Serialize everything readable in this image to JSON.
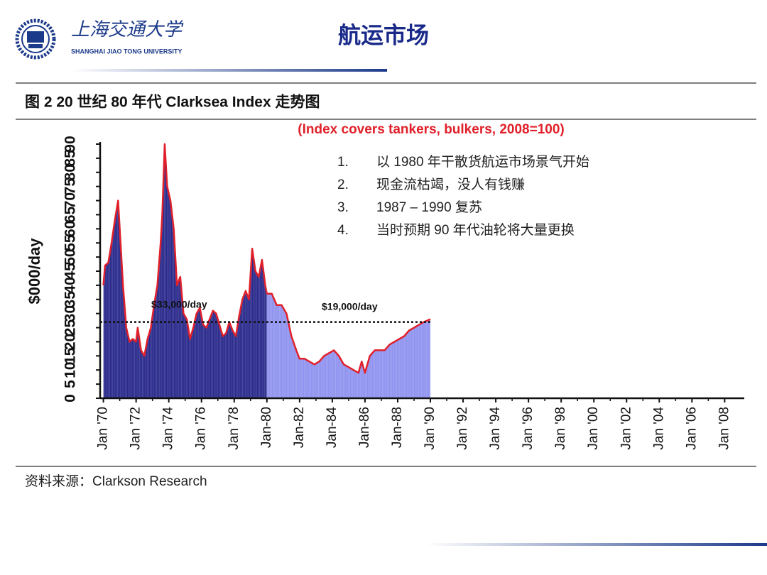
{
  "header": {
    "university_cn": "上海交通大学",
    "university_en": "SHANGHAI JIAO TONG UNIVERSITY",
    "title": "航运市场"
  },
  "figure": {
    "caption": "图 2 20 世纪 80 年代 Clarksea Index 走势图",
    "source": "资料来源：Clarkson Research"
  },
  "chart_data": {
    "type": "area",
    "subtitle": "(Index covers tankers, bulkers, 2008=100)",
    "ylabel": "$000/day",
    "line_color": "#e0202a",
    "series": [
      {
        "color": "#2a2a8c",
        "x": [
          1970,
          1970.1,
          1970.3,
          1970.5,
          1970.7,
          1970.9,
          1971.0,
          1971.2,
          1971.4,
          1971.6,
          1971.8,
          1972.0,
          1972.1,
          1972.3,
          1972.5,
          1972.7,
          1972.9,
          1973.1,
          1973.3,
          1973.5,
          1973.6,
          1973.75,
          1973.9,
          1974.1,
          1974.3,
          1974.5,
          1974.7,
          1974.9,
          1975.1,
          1975.3,
          1975.5,
          1975.7,
          1975.9,
          1976.1,
          1976.3,
          1976.5,
          1976.7,
          1976.9,
          1977.1,
          1977.3,
          1977.5,
          1977.7,
          1977.9,
          1978.1,
          1978.3,
          1978.5,
          1978.7,
          1978.9,
          1979.1,
          1979.3,
          1979.5,
          1979.7,
          1979.9,
          1980.0
        ],
        "values": [
          40,
          47,
          48,
          55,
          63,
          70,
          60,
          40,
          25,
          20,
          21,
          20,
          25,
          17,
          15,
          21,
          25,
          33,
          40,
          55,
          65,
          90,
          75,
          70,
          60,
          40,
          43,
          30,
          28,
          21,
          25,
          30,
          32,
          26,
          25,
          28,
          31,
          30,
          26,
          22,
          23,
          27,
          24,
          22,
          29,
          35,
          38,
          35,
          53,
          45,
          43,
          49,
          40,
          37
        ]
      },
      {
        "color": "#8f93ef",
        "x": [
          1980.0,
          1980.3,
          1980.6,
          1980.9,
          1981.2,
          1981.5,
          1981.8,
          1982.0,
          1982.3,
          1982.6,
          1982.9,
          1983.2,
          1983.5,
          1983.8,
          1984.1,
          1984.4,
          1984.7,
          1985.0,
          1985.3,
          1985.6,
          1985.8,
          1986.0,
          1986.3,
          1986.6,
          1986.9,
          1987.2,
          1987.5,
          1987.8,
          1988.1,
          1988.4,
          1988.7,
          1989.0,
          1989.3,
          1989.6,
          1990.0
        ],
        "values": [
          37,
          37,
          33,
          33,
          30,
          22,
          17,
          14,
          14,
          13,
          12,
          13,
          15,
          16,
          17,
          15,
          12,
          11,
          10,
          9,
          13,
          9,
          15,
          17,
          17,
          17,
          19,
          20,
          21,
          22,
          24,
          25,
          26,
          27,
          28
        ]
      }
    ],
    "reference_line": {
      "value": 27
    },
    "annotations": [
      "$33,000/day",
      "$19,000/day"
    ],
    "notes": [
      {
        "number": "1.",
        "text": "以 1980 年干散货航运市场景气开始"
      },
      {
        "number": "2.",
        "text": "现金流枯竭，没人有钱赚"
      },
      {
        "number": "3.",
        "text": "1987 – 1990 复苏"
      },
      {
        "number": "4.",
        "text": "当时预期 90 年代油轮将大量更换"
      }
    ],
    "xlim": [
      1969.8,
      2009.2
    ],
    "xticks": [
      {
        "value": 1970,
        "label": "Jan '70"
      },
      {
        "value": 1972,
        "label": "Jan '72"
      },
      {
        "value": 1974,
        "label": "Jan '74"
      },
      {
        "value": 1976,
        "label": "Jan '76"
      },
      {
        "value": 1978,
        "label": "Jan '78"
      },
      {
        "value": 1980,
        "label": "Jan-80"
      },
      {
        "value": 1982,
        "label": "Jan-82"
      },
      {
        "value": 1984,
        "label": "Jan-84"
      },
      {
        "value": 1986,
        "label": "Jan-86"
      },
      {
        "value": 1988,
        "label": "Jan-88"
      },
      {
        "value": 1990,
        "label": "Jan '90"
      },
      {
        "value": 1992,
        "label": "Jan '92"
      },
      {
        "value": 1994,
        "label": "Jan '94"
      },
      {
        "value": 1996,
        "label": "Jan '96"
      },
      {
        "value": 1998,
        "label": "Jan '98"
      },
      {
        "value": 2000,
        "label": "Jan '00"
      },
      {
        "value": 2002,
        "label": "Jan '02"
      },
      {
        "value": 2004,
        "label": "Jan '04"
      },
      {
        "value": 2006,
        "label": "Jan '06"
      },
      {
        "value": 2008,
        "label": "Jan '08"
      }
    ],
    "ylim": [
      0,
      90
    ],
    "yticks": [
      0,
      5,
      10,
      15,
      20,
      25,
      30,
      35,
      40,
      45,
      50,
      55,
      60,
      65,
      70,
      75,
      80,
      85,
      90
    ]
  }
}
